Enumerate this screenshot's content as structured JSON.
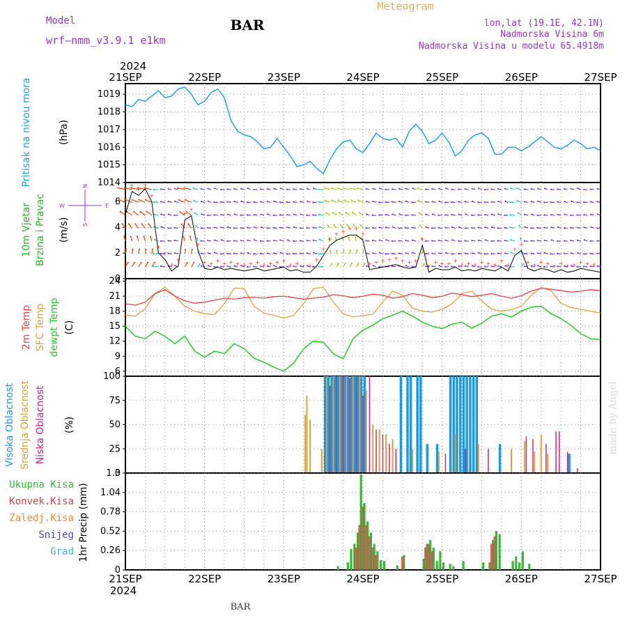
{
  "header": {
    "model_label": "Model",
    "model_name": "wrf–nmm_v3.9.1  e1km",
    "station": "BAR",
    "title": "Meteogram",
    "coords": "lon,lat (19.1E, 42.1N)",
    "elevation": "Nadmorska Visina 6m",
    "model_elevation": "Nadmorska Visina u modelu 65.4918m",
    "footer_station": "BAR",
    "credit": "made by Angel"
  },
  "colors": {
    "purple": "#9933cc",
    "title_gold": "#e0b060",
    "pressure": "#1ca3e8",
    "wind_label": "#22bb22",
    "t2m": "#e84040",
    "tsfc": "#e0a040",
    "dewpt": "#22cc22",
    "high_cloud": "#1c9ae0",
    "mid_cloud": "#e0a030",
    "low_cloud": "#cc2288",
    "total_precip": "#33bb33",
    "conv_precip": "#cc4444",
    "freezing": "#ee8833",
    "snow": "#4444cc",
    "hail": "#33bbbb"
  },
  "time_axis": {
    "top_year": "2024",
    "bottom_year": "2024",
    "labels": [
      "21SEP",
      "22SEP",
      "23SEP",
      "24SEP",
      "25SEP",
      "26SEP",
      "27SEP"
    ],
    "hours_per_day": 24,
    "total_hours": 144
  },
  "chart_data": [
    {
      "type": "line",
      "panel": "pressure",
      "ylabel_main": "Pritisak na nivou mora",
      "unit": "(hPa)",
      "yticks": [
        1014,
        1015,
        1016,
        1017,
        1018,
        1019
      ],
      "ylim": [
        1014,
        1019.6
      ],
      "series": [
        {
          "name": "Pritisak na nivou mora",
          "x": [
            0,
            2,
            4,
            6,
            8,
            10,
            12,
            14,
            16,
            18,
            20,
            22,
            24,
            26,
            28,
            30,
            32,
            34,
            36,
            38,
            40,
            42,
            44,
            46,
            48,
            50,
            52,
            54,
            56,
            58,
            60,
            62,
            64,
            66,
            68,
            70,
            72,
            74,
            76,
            78,
            80,
            82,
            84,
            86,
            88,
            90,
            92,
            94,
            96,
            98,
            100,
            102,
            104,
            106,
            108,
            110,
            112,
            114,
            116,
            118,
            120,
            122,
            124,
            126,
            128,
            130,
            132,
            134,
            136,
            138,
            140,
            142,
            144
          ],
          "values": [
            1018.4,
            1018.3,
            1018.7,
            1018.6,
            1018.9,
            1019.2,
            1018.8,
            1018.9,
            1019.3,
            1019.4,
            1019.0,
            1018.4,
            1018.6,
            1019.1,
            1019.3,
            1018.8,
            1017.5,
            1016.9,
            1016.7,
            1016.6,
            1016.3,
            1015.9,
            1016.0,
            1016.5,
            1016.0,
            1015.5,
            1014.9,
            1015.0,
            1015.2,
            1014.8,
            1014.5,
            1015.3,
            1015.9,
            1016.3,
            1016.4,
            1015.9,
            1015.7,
            1016.2,
            1016.8,
            1016.5,
            1016.4,
            1016.5,
            1016.0,
            1016.9,
            1017.3,
            1016.9,
            1016.2,
            1016.4,
            1016.8,
            1016.3,
            1015.5,
            1015.8,
            1016.4,
            1016.7,
            1016.8,
            1016.5,
            1015.6,
            1015.6,
            1016.0,
            1016.0,
            1015.8,
            1016.0,
            1016.3,
            1016.6,
            1016.3,
            1016.0,
            1015.9,
            1016.1,
            1016.4,
            1016.2,
            1015.9,
            1016.0,
            1015.8
          ]
        }
      ]
    },
    {
      "type": "line",
      "panel": "wind",
      "ylabel_main": "10m Vjetar",
      "ylabel_sub": "Brzina i Pravac",
      "unit": "(m/s)",
      "yticks": [
        0,
        2,
        4,
        6
      ],
      "ylim": [
        0,
        7.5
      ],
      "compass": {
        "north": "N",
        "south": "S",
        "west": "W",
        "east": "E"
      },
      "series": [
        {
          "name": "10m Vjetar",
          "x": [
            0,
            2,
            4,
            6,
            8,
            10,
            12,
            14,
            16,
            18,
            20,
            22,
            24,
            26,
            28,
            30,
            32,
            34,
            36,
            38,
            40,
            42,
            44,
            46,
            48,
            50,
            52,
            54,
            56,
            58,
            60,
            62,
            64,
            66,
            68,
            70,
            72,
            74,
            76,
            78,
            80,
            82,
            84,
            86,
            88,
            90,
            92,
            94,
            96,
            98,
            100,
            102,
            104,
            106,
            108,
            110,
            112,
            114,
            116,
            118,
            120,
            122,
            124,
            126,
            128,
            130,
            132,
            134,
            136,
            138,
            140,
            142,
            144
          ],
          "values": [
            5.0,
            6.8,
            6.5,
            7.0,
            6.0,
            2.0,
            1.5,
            0.6,
            1.0,
            4.6,
            4.9,
            2.2,
            0.8,
            0.7,
            0.9,
            0.7,
            0.8,
            0.7,
            0.6,
            0.7,
            0.8,
            0.6,
            0.7,
            0.8,
            0.9,
            0.6,
            0.7,
            0.5,
            0.5,
            1.0,
            1.8,
            2.6,
            3.0,
            3.2,
            3.4,
            3.4,
            3.0,
            0.7,
            0.8,
            0.9,
            1.0,
            1.1,
            0.9,
            0.8,
            0.9,
            2.6,
            0.5,
            0.8,
            0.7,
            0.7,
            0.9,
            0.6,
            0.7,
            0.6,
            0.8,
            0.7,
            0.6,
            0.9,
            0.6,
            1.8,
            2.2,
            0.8,
            0.6,
            0.8,
            0.7,
            0.5,
            0.7,
            0.5,
            0.6,
            0.8,
            0.7,
            0.6,
            0.5
          ]
        }
      ]
    },
    {
      "type": "line",
      "panel": "temperature",
      "ylabel_a": "2m Temp",
      "ylabel_b": "SFC Temp",
      "ylabel_c": "dewpt Temp",
      "unit": "(C)",
      "yticks": [
        6,
        9,
        12,
        15,
        18,
        21,
        24
      ],
      "ylim": [
        5,
        24.5
      ],
      "series": [
        {
          "name": "2m Temp",
          "x": [
            0,
            3,
            6,
            9,
            12,
            15,
            18,
            21,
            24,
            27,
            30,
            33,
            36,
            39,
            42,
            45,
            48,
            51,
            54,
            57,
            60,
            63,
            66,
            69,
            72,
            75,
            78,
            81,
            84,
            87,
            90,
            93,
            96,
            99,
            102,
            105,
            108,
            111,
            114,
            117,
            120,
            123,
            126,
            129,
            132,
            135,
            138,
            141,
            144
          ],
          "values": [
            19.5,
            19.2,
            19.8,
            21.5,
            22.3,
            21.0,
            20.1,
            19.6,
            19.8,
            20.2,
            20.6,
            20.4,
            20.7,
            20.8,
            20.6,
            20.9,
            21.0,
            20.7,
            20.4,
            20.6,
            20.8,
            21.3,
            21.1,
            20.7,
            21.0,
            21.4,
            21.2,
            20.6,
            20.9,
            21.5,
            21.2,
            20.7,
            21.0,
            21.6,
            21.3,
            20.9,
            21.2,
            21.5,
            21.0,
            20.6,
            21.1,
            22.0,
            22.6,
            22.4,
            22.1,
            21.8,
            22.0,
            22.3,
            22.1
          ]
        },
        {
          "name": "SFC Temp",
          "x": [
            0,
            3,
            6,
            9,
            12,
            15,
            18,
            21,
            24,
            27,
            30,
            33,
            36,
            39,
            42,
            45,
            48,
            51,
            54,
            57,
            60,
            63,
            66,
            69,
            72,
            75,
            78,
            81,
            84,
            87,
            90,
            93,
            96,
            99,
            102,
            105,
            108,
            111,
            114,
            117,
            120,
            123,
            126,
            129,
            132,
            135,
            138,
            141,
            144
          ],
          "values": [
            17.2,
            17.0,
            18.5,
            21.5,
            22.8,
            21.0,
            19.0,
            18.0,
            17.5,
            17.3,
            19.5,
            22.6,
            22.5,
            19.0,
            17.6,
            17.2,
            16.6,
            17.2,
            19.5,
            22.5,
            22.8,
            19.8,
            17.5,
            16.9,
            17.1,
            17.4,
            19.8,
            22.0,
            21.2,
            18.6,
            18.0,
            17.8,
            18.4,
            19.5,
            21.5,
            22.0,
            20.0,
            18.4,
            18.0,
            18.3,
            19.0,
            21.2,
            22.7,
            22.1,
            19.6,
            18.7,
            18.4,
            18.0,
            17.6
          ]
        },
        {
          "name": "dewpt Temp",
          "x": [
            0,
            3,
            6,
            9,
            12,
            15,
            18,
            21,
            24,
            27,
            30,
            33,
            36,
            39,
            42,
            45,
            48,
            51,
            54,
            57,
            60,
            63,
            66,
            69,
            72,
            75,
            78,
            81,
            84,
            87,
            90,
            93,
            96,
            99,
            102,
            105,
            108,
            111,
            114,
            117,
            120,
            123,
            126,
            129,
            132,
            135,
            138,
            141,
            144
          ],
          "values": [
            15.0,
            13.0,
            12.5,
            14.0,
            13.0,
            11.5,
            13.0,
            10.0,
            8.8,
            10.0,
            9.5,
            11.5,
            10.5,
            8.6,
            7.8,
            6.8,
            6.0,
            7.6,
            10.5,
            12.0,
            11.8,
            9.5,
            8.5,
            12.5,
            14.2,
            15.2,
            16.5,
            17.2,
            18.0,
            17.0,
            15.8,
            15.0,
            14.5,
            15.4,
            15.8,
            14.6,
            15.6,
            17.0,
            17.5,
            16.8,
            18.0,
            18.8,
            19.0,
            17.5,
            16.5,
            15.2,
            13.5,
            12.5,
            12.3
          ]
        }
      ]
    },
    {
      "type": "bar",
      "panel": "cloud",
      "ylabel_a": "Visoka Oblacnost",
      "ylabel_b": "Srednja Oblacnost",
      "ylabel_c": "Niska Oblacnost",
      "unit": "(%)",
      "yticks": [
        0,
        25,
        50,
        75,
        100
      ],
      "ylim": [
        0,
        100
      ],
      "series": [
        {
          "name": "Visoka Oblacnost",
          "x": [
            60.5,
            61.5,
            62.5,
            63.5,
            64.5,
            65.5,
            66.5,
            67.5,
            68.5,
            69.5,
            70.5,
            71.5,
            72.5,
            83.5,
            85.5,
            86.5,
            88.5,
            89.5,
            91.5,
            94.5,
            98.5,
            99.5,
            100.5,
            101.5,
            102.5,
            103.5,
            104.5,
            105.5,
            106.5,
            113.5,
            134.5
          ],
          "values": [
            100,
            100,
            100,
            100,
            100,
            100,
            100,
            100,
            100,
            100,
            100,
            100,
            100,
            100,
            100,
            100,
            100,
            100,
            30,
            30,
            100,
            100,
            100,
            100,
            100,
            100,
            100,
            100,
            100,
            30,
            20
          ]
        },
        {
          "name": "Srednja Oblacnost",
          "x": [
            54.5,
            55.0,
            56.0,
            59.5,
            61.0,
            63.0,
            65.0,
            67.0,
            69.0,
            71.0,
            73.0,
            75.0,
            77.0,
            79.0,
            81.0,
            87.0,
            95.0,
            100.0,
            107.0,
            117.0,
            121.0,
            124.0,
            126.0,
            128.0
          ],
          "values": [
            60,
            80,
            55,
            25,
            100,
            100,
            100,
            100,
            100,
            100,
            85,
            50,
            45,
            40,
            35,
            25,
            22,
            40,
            30,
            25,
            33,
            22,
            40,
            20
          ]
        },
        {
          "name": "Niska Oblacnost",
          "x": [
            62.0,
            64.0,
            66.0,
            68.0,
            70.0,
            72.0,
            74.0,
            76.0,
            78.0,
            80.0,
            82.0,
            97.0,
            103.0,
            110.0,
            121.5,
            123.5,
            127.5,
            130.5,
            131.5,
            134.0,
            137.0
          ],
          "values": [
            90,
            100,
            100,
            98,
            100,
            80,
            100,
            45,
            40,
            30,
            25,
            20,
            25,
            25,
            38,
            35,
            30,
            43,
            43,
            22,
            5
          ]
        }
      ]
    },
    {
      "type": "bar",
      "panel": "precip",
      "legend": [
        "Ukupna Kisa",
        "Konvek.Kisa",
        "Zaledj.Kisa",
        "Snijeg",
        "Grad"
      ],
      "unit": "1hr Precip (mm)",
      "yticks": [
        "0",
        "0.26",
        "0.52",
        "0.78",
        "1.04",
        "1.3"
      ],
      "ylim": [
        0,
        1.3
      ],
      "series": [
        {
          "name": "Ukupna Kisa",
          "x": [
            64.5,
            67.5,
            68.5,
            69.5,
            70.5,
            71.5,
            72.5,
            73.5,
            74.5,
            75.5,
            76.5,
            77.5,
            78.5,
            82.5,
            84.5,
            90.5,
            91.5,
            92.5,
            93.5,
            94.5,
            95.5,
            96.5,
            98.5,
            99.5,
            102.5,
            108.5,
            110.5,
            111.5,
            112.5,
            113.5,
            117.5,
            118.5,
            119.5,
            120.5,
            122.5
          ],
          "values": [
            0.05,
            0.1,
            0.28,
            0.35,
            0.5,
            1.28,
            0.9,
            0.65,
            0.5,
            0.35,
            0.25,
            0.13,
            0.12,
            0.06,
            0.2,
            0.15,
            0.35,
            0.4,
            0.3,
            0.12,
            0.25,
            0.1,
            0.08,
            0.05,
            0.12,
            0.1,
            0.1,
            0.4,
            0.52,
            0.48,
            0.12,
            0.18,
            0.1,
            0.25,
            0.08
          ]
        },
        {
          "name": "Konvek.Kisa",
          "x": [
            70.0,
            71.0,
            72.0,
            73.0,
            74.0,
            75.0,
            76.0,
            84.0,
            91.0,
            92.0,
            93.0,
            111.0,
            112.0
          ],
          "values": [
            0.3,
            0.6,
            0.85,
            0.6,
            0.45,
            0.3,
            0.2,
            0.18,
            0.3,
            0.35,
            0.25,
            0.35,
            0.45
          ]
        }
      ]
    }
  ]
}
